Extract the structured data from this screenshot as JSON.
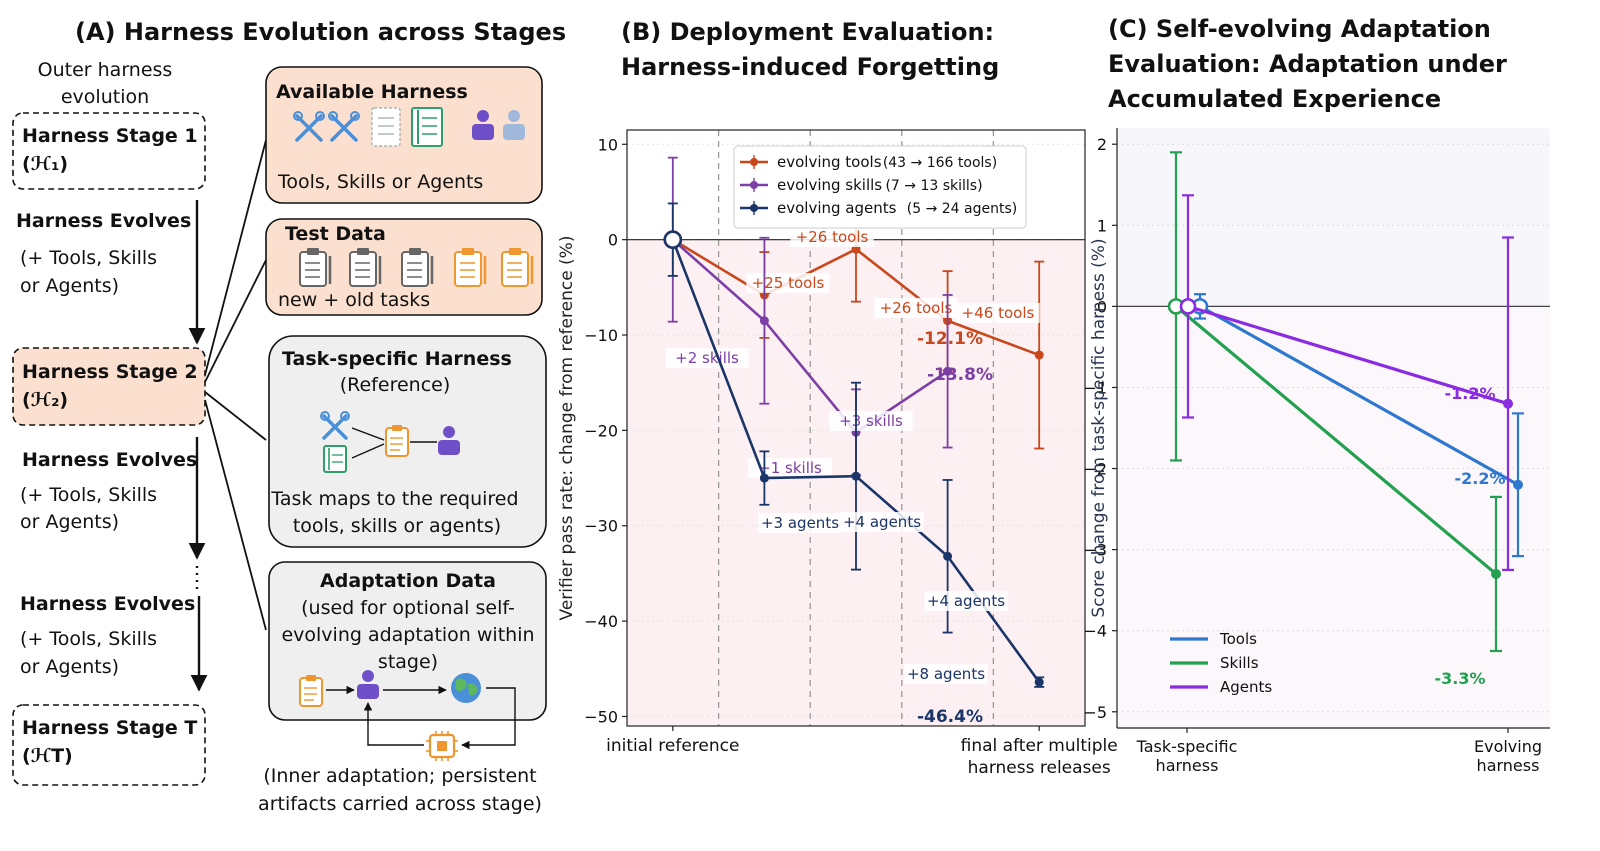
{
  "panel_a": {
    "title": "(A) Harness Evolution across Stages",
    "outer_label_1": "Outer harness",
    "outer_label_2": "evolution",
    "stages": [
      {
        "name": "Harness Stage 1",
        "symbol": "(ℋ₁)"
      },
      {
        "name": "Harness Stage 2",
        "symbol": "(ℋ₂)"
      },
      {
        "name": "Harness Stage T",
        "symbol": "(ℋT)"
      }
    ],
    "evolves_label": "Harness Evolves",
    "evolves_sub_1": "(+ Tools, Skills",
    "evolves_sub_2": "or Agents)",
    "available": {
      "title": "Available Harness",
      "caption": "Tools, Skills or Agents"
    },
    "test_data": {
      "title": "Test Data",
      "caption": "new + old tasks"
    },
    "task_specific": {
      "title": "Task-specific Harness",
      "subtitle": "(Reference)",
      "caption_1": "Task maps to the required",
      "caption_2": "tools, skills or agents)"
    },
    "adaptation": {
      "title": "Adaptation Data",
      "line_1": "(used for optional self-",
      "line_2": "evolving adaptation within",
      "line_3": "stage)",
      "footnote_1": "(Inner adaptation; persistent",
      "footnote_2": "artifacts carried across stage)"
    },
    "colors": {
      "orange_box": "#fbe0cf",
      "gray_box": "#efefef",
      "tool_blue": "#4a90d9",
      "skill_green": "#2e9e6a",
      "agent_purple": "#6f4fc8",
      "task_orange": "#f0962e"
    }
  },
  "panel_b": {
    "title_1": "(B) Deployment Evaluation:",
    "title_2": "Harness-induced Forgetting",
    "chart_data": {
      "type": "line",
      "ylabel": "Verifier pass rate: change from reference (%)",
      "x_labels": [
        "initial reference",
        "final after multiple",
        "harness releases"
      ],
      "ylim": [
        -51,
        11.5
      ],
      "yticks": [
        10,
        0,
        -10,
        -20,
        -30,
        -40,
        -50
      ],
      "ytick_labels": [
        "10",
        "0",
        "−10",
        "−20",
        "−30",
        "−40",
        "−50"
      ],
      "stage_dividers": [
        0.5,
        1.5,
        2.5,
        3.5
      ],
      "series": [
        {
          "name": "evolving tools",
          "legend_detail": "(43 → 166 tools)",
          "color": "#c8471b",
          "x": [
            0,
            1,
            2,
            3,
            4
          ],
          "y": [
            0,
            -5.8,
            -1.0,
            -8.5,
            -12.1
          ],
          "err": [
            0,
            4.5,
            5.5,
            5.2,
            9.8
          ],
          "step_labels": [
            "+25 tools",
            "+26 tools",
            "+26 tools",
            "+46 tools"
          ],
          "final_label": "-12.1%"
        },
        {
          "name": "evolving skills",
          "legend_detail": "(7 → 13 skills)",
          "color": "#7b3fa6",
          "x": [
            0,
            1,
            2,
            3
          ],
          "y": [
            0,
            -8.5,
            -20.2,
            -13.8
          ],
          "err": [
            8.6,
            8.7,
            4.5,
            8.0
          ],
          "step_labels": [
            "+2 skills",
            "+1 skills",
            "+3 skills"
          ],
          "final_label": "-13.8%"
        },
        {
          "name": "evolving agents",
          "legend_detail": "(5 → 24 agents)",
          "color": "#1a3568",
          "x": [
            0,
            1,
            2,
            3,
            4
          ],
          "y": [
            0,
            -25.0,
            -24.8,
            -33.2,
            -46.4
          ],
          "err": [
            3.8,
            2.8,
            9.8,
            8.0,
            0.5
          ],
          "step_labels": [
            "+3 agents",
            "+4 agents",
            "+4 agents",
            "+8 agents"
          ],
          "final_label": "-46.4%"
        }
      ]
    }
  },
  "panel_c": {
    "title_1": "(C) Self-evolving Adaptation",
    "title_2": "Evaluation: Adaptation under",
    "title_3": "Accumulated Experience",
    "chart_data": {
      "type": "line",
      "ylabel": "Score change from task-specific harness (%)",
      "categories": [
        "Task-specific harness",
        "Evolving harness"
      ],
      "category_lines": [
        [
          "Task-specific",
          "harness"
        ],
        [
          "Evolving",
          "harness"
        ]
      ],
      "ylim": [
        -5.2,
        2.2
      ],
      "yticks": [
        2,
        1,
        0,
        -1,
        -2,
        -3,
        -4,
        -5
      ],
      "ytick_labels": [
        "2",
        "1",
        "0",
        "−1",
        "−2",
        "−3",
        "−4",
        "−5"
      ],
      "series": [
        {
          "name": "Tools",
          "color": "#2f78d0",
          "values": [
            0,
            -2.2
          ],
          "err": [
            0.15,
            0.88
          ],
          "label": "-2.2%"
        },
        {
          "name": "Skills",
          "color": "#23a050",
          "values": [
            0,
            -3.3
          ],
          "err": [
            1.9,
            0.95
          ],
          "label": "-3.3%"
        },
        {
          "name": "Agents",
          "color": "#8a2be2",
          "values": [
            0,
            -1.2
          ],
          "err": [
            1.37,
            2.05
          ],
          "label": "-1.2%"
        }
      ],
      "legend_position": "lower-left"
    }
  }
}
